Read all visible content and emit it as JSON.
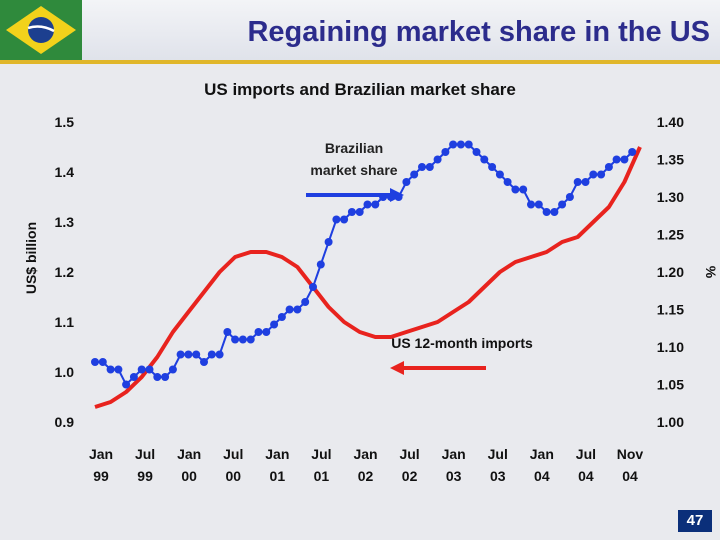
{
  "slide": {
    "title": "Regaining market share in the US",
    "page_number": "47"
  },
  "colors": {
    "title_text": "#2c2c8c",
    "imports_line": "#e8231e",
    "share_line": "#1f3fe0",
    "accent_rule": "#e0b62a",
    "page_badge": "#0b2f7a"
  },
  "chart_data": {
    "type": "line",
    "title": "US imports and Brazilian market share",
    "y_left": {
      "label": "US$ billion",
      "range": [
        0.9,
        1.5
      ],
      "ticks": [
        "1.5",
        "1.4",
        "1.3",
        "1.2",
        "1.1",
        "1.0",
        "0.9"
      ]
    },
    "y_right": {
      "label": "%",
      "range": [
        1.0,
        1.4
      ],
      "ticks": [
        "1.40",
        "1.35",
        "1.30",
        "1.25",
        "1.20",
        "1.15",
        "1.10",
        "1.05",
        "1.00"
      ]
    },
    "x_ticks": [
      {
        "line1": "Jan",
        "line2": "99"
      },
      {
        "line1": "Jul",
        "line2": "99"
      },
      {
        "line1": "Jan",
        "line2": "00"
      },
      {
        "line1": "Jul",
        "line2": "00"
      },
      {
        "line1": "Jan",
        "line2": "01"
      },
      {
        "line1": "Jul",
        "line2": "01"
      },
      {
        "line1": "Jan",
        "line2": "02"
      },
      {
        "line1": "Jul",
        "line2": "02"
      },
      {
        "line1": "Jan",
        "line2": "03"
      },
      {
        "line1": "Jul",
        "line2": "03"
      },
      {
        "line1": "Jan",
        "line2": "04"
      },
      {
        "line1": "Jul",
        "line2": "04"
      },
      {
        "line1": "Nov",
        "line2": "04"
      }
    ],
    "annotations": {
      "share": [
        "Brazilian",
        "market share"
      ],
      "imports": "US 12-month imports"
    },
    "series": [
      {
        "name": "US 12-month imports",
        "axis": "left",
        "color": "#e8231e",
        "x": [
          0,
          2,
          4,
          6,
          8,
          10,
          12,
          14,
          16,
          18,
          20,
          22,
          24,
          26,
          28,
          30,
          32,
          34,
          36,
          38,
          40,
          42,
          44,
          46,
          48,
          50,
          52,
          54,
          56,
          58,
          60,
          62,
          64,
          66,
          68,
          70
        ],
        "values": [
          0.93,
          0.94,
          0.96,
          0.99,
          1.03,
          1.08,
          1.12,
          1.16,
          1.2,
          1.23,
          1.24,
          1.24,
          1.23,
          1.21,
          1.17,
          1.13,
          1.1,
          1.08,
          1.07,
          1.07,
          1.08,
          1.09,
          1.1,
          1.12,
          1.14,
          1.17,
          1.2,
          1.22,
          1.23,
          1.24,
          1.26,
          1.27,
          1.3,
          1.33,
          1.38,
          1.45
        ]
      },
      {
        "name": "Brazilian market share",
        "axis": "right",
        "color": "#1f3fe0",
        "x": [
          0,
          1,
          2,
          3,
          4,
          5,
          6,
          7,
          8,
          9,
          10,
          11,
          12,
          13,
          14,
          15,
          16,
          17,
          18,
          19,
          20,
          21,
          22,
          23,
          24,
          25,
          26,
          27,
          28,
          29,
          30,
          31,
          32,
          33,
          34,
          35,
          36,
          37,
          38,
          39,
          40,
          41,
          42,
          43,
          44,
          45,
          46,
          47,
          48,
          49,
          50,
          51,
          52,
          53,
          54,
          55,
          56,
          57,
          58,
          59,
          60,
          61,
          62,
          63,
          64,
          65,
          66,
          67,
          68,
          69
        ],
        "values": [
          1.08,
          1.08,
          1.07,
          1.07,
          1.05,
          1.06,
          1.07,
          1.07,
          1.06,
          1.06,
          1.07,
          1.09,
          1.09,
          1.09,
          1.08,
          1.09,
          1.09,
          1.12,
          1.11,
          1.11,
          1.11,
          1.12,
          1.12,
          1.13,
          1.14,
          1.15,
          1.15,
          1.16,
          1.18,
          1.21,
          1.24,
          1.27,
          1.27,
          1.28,
          1.28,
          1.29,
          1.29,
          1.3,
          1.3,
          1.3,
          1.32,
          1.33,
          1.34,
          1.34,
          1.35,
          1.36,
          1.37,
          1.37,
          1.37,
          1.36,
          1.35,
          1.34,
          1.33,
          1.32,
          1.31,
          1.31,
          1.29,
          1.29,
          1.28,
          1.28,
          1.29,
          1.3,
          1.32,
          1.32,
          1.33,
          1.33,
          1.34,
          1.35,
          1.35,
          1.36
        ]
      }
    ],
    "x_index_span": [
      0,
      70
    ],
    "grid": false,
    "legend": "none"
  }
}
